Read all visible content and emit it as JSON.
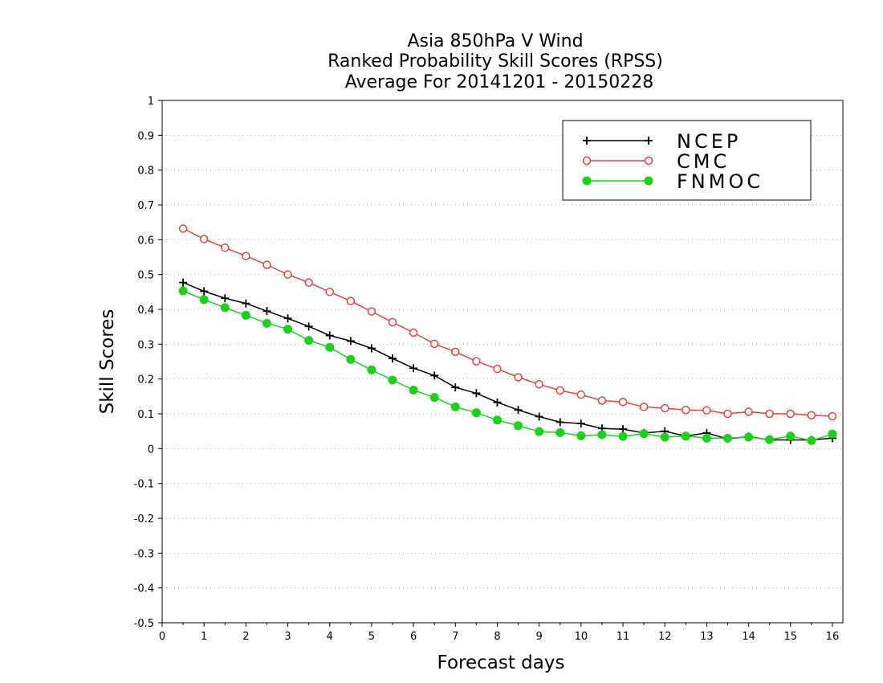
{
  "chart_data": {
    "type": "line",
    "title_lines": [
      "Asia 850hPa V Wind",
      "Ranked Probability Skill Scores (RPSS)",
      "Average For 20141201 - 20150228"
    ],
    "xlabel": "Forecast days",
    "ylabel": "Skill Scores",
    "xlim": [
      0,
      16.25
    ],
    "ylim": [
      -0.5,
      1
    ],
    "x_ticks": [
      0,
      1,
      2,
      3,
      4,
      5,
      6,
      7,
      8,
      9,
      10,
      11,
      12,
      13,
      14,
      15,
      16
    ],
    "y_ticks": [
      -0.5,
      -0.4,
      -0.3,
      -0.2,
      -0.1,
      0,
      0.1,
      0.2,
      0.3,
      0.4,
      0.5,
      0.6,
      0.7,
      0.8,
      0.9,
      1
    ],
    "x_tick_labels": [
      "0",
      "1",
      "2",
      "3",
      "4",
      "5",
      "6",
      "7",
      "8",
      "9",
      "10",
      "11",
      "12",
      "13",
      "14",
      "15",
      "16"
    ],
    "y_tick_labels": [
      "-0.5",
      "-0.4",
      "-0.3",
      "-0.2",
      "-0.1",
      "0",
      "0.1",
      "0.2",
      "0.3",
      "0.4",
      "0.5",
      "0.6",
      "0.7",
      "0.8",
      "0.9",
      "1"
    ],
    "grid": true,
    "legend_position": "top-right",
    "x": [
      0.5,
      1,
      1.5,
      2,
      2.5,
      3,
      3.5,
      4,
      4.5,
      5,
      5.5,
      6,
      6.5,
      7,
      7.5,
      8,
      8.5,
      9,
      9.5,
      10,
      10.5,
      11,
      11.5,
      12,
      12.5,
      13,
      13.5,
      14,
      14.5,
      15,
      15.5,
      16
    ],
    "series": [
      {
        "name": "NCEP",
        "color": "#000000",
        "marker": "plus",
        "values": [
          0.477,
          0.452,
          0.432,
          0.417,
          0.395,
          0.374,
          0.351,
          0.325,
          0.309,
          0.288,
          0.259,
          0.231,
          0.21,
          0.176,
          0.159,
          0.133,
          0.111,
          0.092,
          0.076,
          0.072,
          0.058,
          0.056,
          0.045,
          0.05,
          0.036,
          0.045,
          0.028,
          0.035,
          0.025,
          0.025,
          0.025,
          0.03
        ]
      },
      {
        "name": "CMC",
        "color": "#e84040",
        "marker": "open-circle",
        "values": [
          0.632,
          0.602,
          0.577,
          0.553,
          0.528,
          0.5,
          0.477,
          0.45,
          0.424,
          0.394,
          0.363,
          0.333,
          0.301,
          0.278,
          0.251,
          0.229,
          0.205,
          0.185,
          0.167,
          0.155,
          0.138,
          0.134,
          0.12,
          0.116,
          0.111,
          0.11,
          0.1,
          0.106,
          0.1,
          0.1,
          0.096,
          0.093
        ]
      },
      {
        "name": "FNMOC",
        "color": "#19d219",
        "marker": "filled-circle",
        "values": [
          0.453,
          0.428,
          0.405,
          0.383,
          0.36,
          0.343,
          0.311,
          0.291,
          0.256,
          0.226,
          0.197,
          0.168,
          0.147,
          0.12,
          0.103,
          0.082,
          0.066,
          0.049,
          0.046,
          0.037,
          0.04,
          0.035,
          0.043,
          0.033,
          0.036,
          0.03,
          0.03,
          0.033,
          0.026,
          0.036,
          0.023,
          0.042
        ]
      }
    ]
  }
}
